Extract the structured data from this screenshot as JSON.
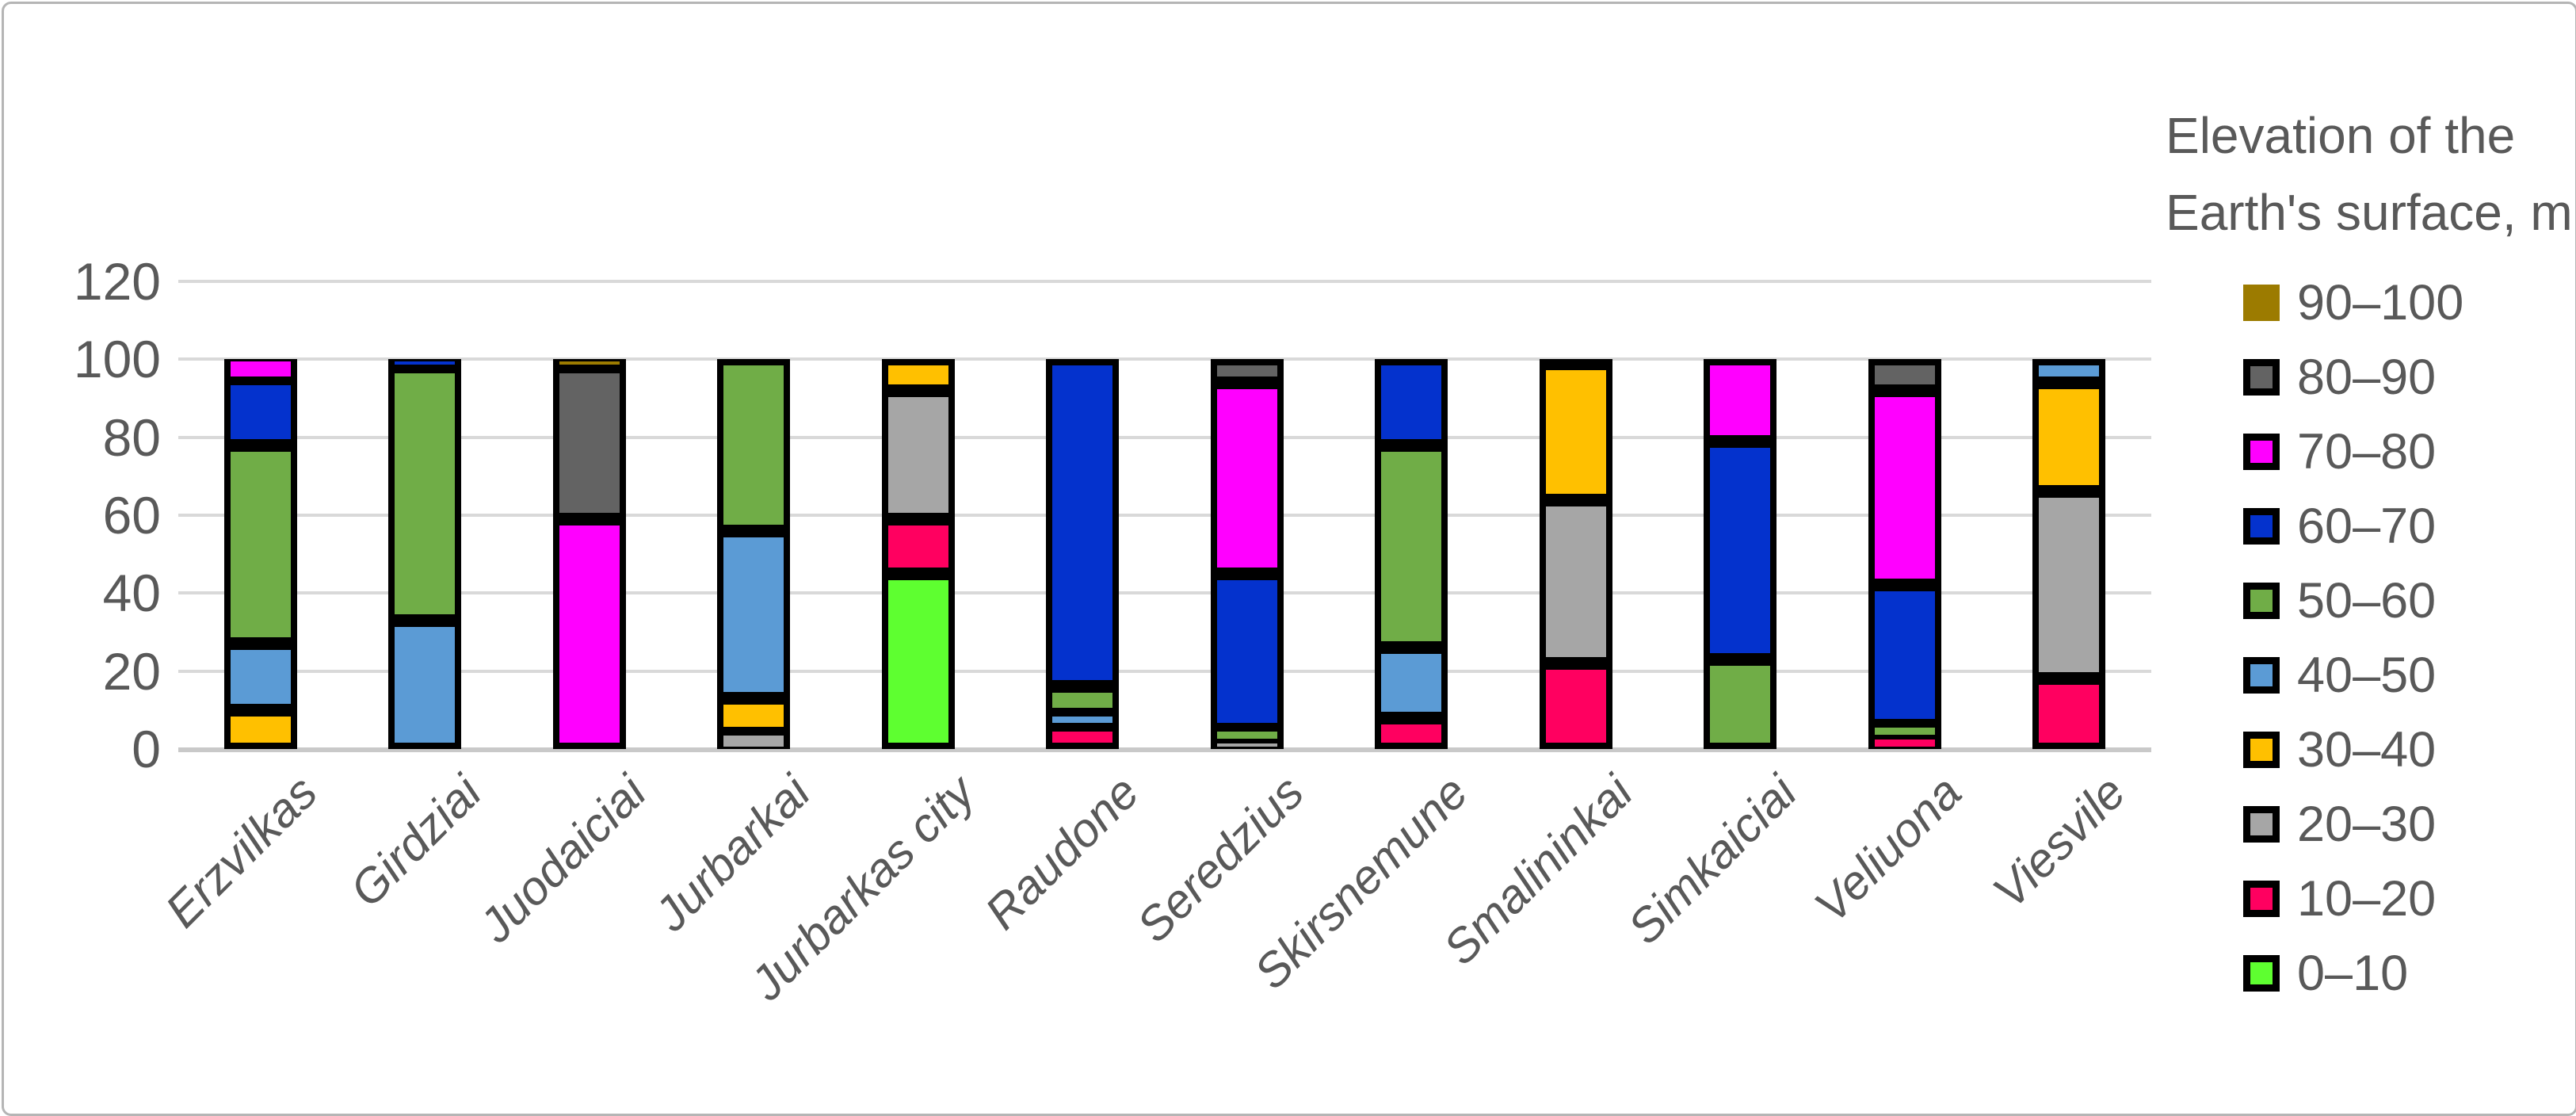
{
  "frame": {
    "background": "#ffffff",
    "border_color": "#b5b5b5"
  },
  "chart_data": {
    "type": "bar",
    "stacked": true,
    "orientation": "vertical",
    "grid": true,
    "legend_position": "right",
    "legend_title": "Elevation of the Earth's surface, m",
    "ylim": [
      0,
      120
    ],
    "y_ticks": [
      0,
      20,
      40,
      60,
      80,
      100,
      120
    ],
    "xlabel": "",
    "ylabel": "",
    "axis_text_color": "#595959",
    "gridline_color": "#d9d9d9",
    "bar_outline_color": "#000000",
    "categories": [
      "Erzvilkas",
      "Girdziai",
      "Juodaiciai",
      "Jurbarkai",
      "Jurbarkas city",
      "Raudone",
      "Seredzius",
      "Skirsnemune",
      "Smalininkai",
      "Simkaiciai",
      "Veliuona",
      "Viesvile"
    ],
    "series": [
      {
        "name": "0–10",
        "color": "#5eff30",
        "values": [
          0,
          0,
          0,
          0,
          45,
          0,
          0,
          0,
          0,
          0,
          0,
          0
        ]
      },
      {
        "name": "10–20",
        "color": "#ff0060",
        "values": [
          0,
          0,
          0,
          0,
          14,
          6,
          0,
          8,
          22,
          0,
          3,
          18
        ]
      },
      {
        "name": "20–30",
        "color": "#a6a6a6",
        "values": [
          0,
          0,
          0,
          4,
          33,
          0,
          2,
          0,
          42,
          0,
          0,
          48
        ]
      },
      {
        "name": "30–40",
        "color": "#ffc000",
        "values": [
          10,
          0,
          0,
          9,
          8,
          0,
          0,
          0,
          35,
          0,
          0,
          28
        ]
      },
      {
        "name": "40–50",
        "color": "#5b9bd5",
        "values": [
          17,
          33,
          0,
          43,
          0,
          3,
          0,
          18,
          1,
          0,
          0,
          6
        ]
      },
      {
        "name": "50–60",
        "color": "#70ad47",
        "values": [
          51,
          65,
          0,
          44,
          0,
          7,
          3,
          52,
          0,
          23,
          3,
          0
        ]
      },
      {
        "name": "60–70",
        "color": "#0432cd",
        "values": [
          17,
          2,
          0,
          0,
          0,
          84,
          40,
          22,
          0,
          56,
          36,
          0
        ]
      },
      {
        "name": "70–80",
        "color": "#ff00ff",
        "values": [
          5,
          0,
          59,
          0,
          0,
          0,
          49,
          0,
          0,
          21,
          50,
          0
        ]
      },
      {
        "name": "80–90",
        "color": "#636363",
        "values": [
          0,
          0,
          39,
          0,
          0,
          0,
          6,
          0,
          0,
          0,
          8,
          0
        ]
      },
      {
        "name": "90–100",
        "color": "#9c7b00",
        "values": [
          0,
          0,
          2,
          0,
          0,
          0,
          0,
          0,
          0,
          0,
          0,
          0
        ]
      }
    ],
    "legend_order_top_to_bottom": [
      "90–100",
      "80–90",
      "70–80",
      "60–70",
      "50–60",
      "40–50",
      "30–40",
      "20–30",
      "10–20",
      "0–10"
    ]
  }
}
